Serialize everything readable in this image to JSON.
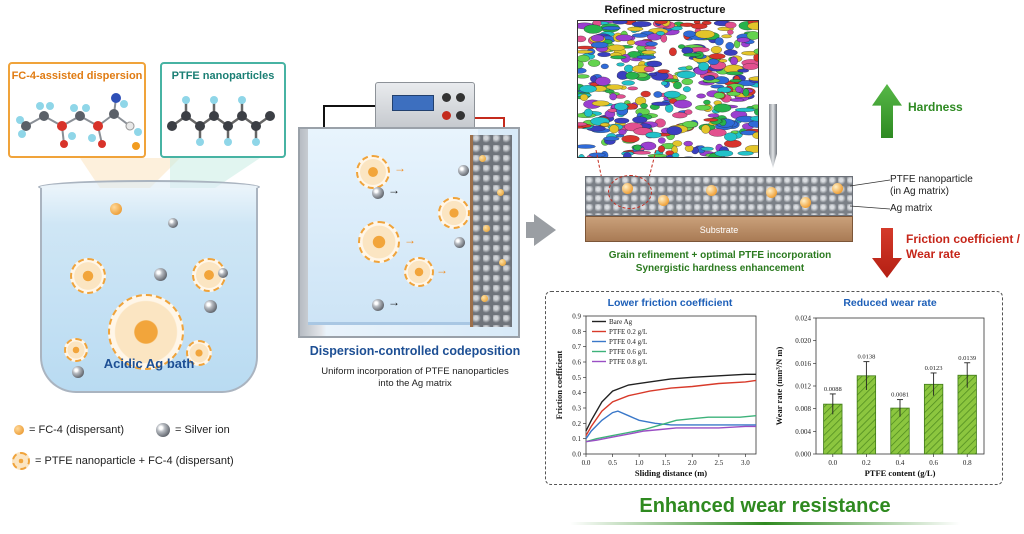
{
  "left": {
    "fc4_box_title": "FC-4-assisted dispersion",
    "ptfe_box_title": "PTFE nanoparticles",
    "bath_label": "Acidic Ag bath",
    "legend": {
      "fc4": "= FC-4 (dispersant)",
      "silver": "= Silver ion",
      "ptfe": "= PTFE nanoparticle + FC-4 (dispersant)"
    }
  },
  "middle": {
    "title": "Dispersion-controlled codeposition",
    "subtitle_line1": "Uniform incorporation of PTFE nanoparticles",
    "subtitle_line2": "into the Ag matrix"
  },
  "right": {
    "micro_title": "Refined microstructure",
    "ptfe_label_line1": "PTFE nanoparticle",
    "ptfe_label_line2": "(in Ag matrix)",
    "ag_label": "Ag matrix",
    "substrate": "Substrate",
    "caption_line1": "Grain refinement + optimal PTFE incorporation",
    "caption_line2": "Synergistic hardness enhancement",
    "hardness": "Hardness",
    "friction_line1": "Friction coefficient /",
    "friction_line2": "Wear rate",
    "bottom_title": "Enhanced wear resistance"
  },
  "colors": {
    "orange": "#f0a33a",
    "teal": "#47b3a3",
    "blue_title": "#1d4f94",
    "green": "#2e8a22",
    "red": "#c6261a"
  },
  "chart_data": [
    {
      "type": "line",
      "title": "Lower friction coefficient",
      "xlabel": "Sliding distance (m)",
      "ylabel": "Friction coefficient",
      "xlim": [
        0,
        3.2
      ],
      "ylim": [
        0,
        0.9
      ],
      "xticks": [
        "0.0",
        "0.5",
        "1.0",
        "1.5",
        "2.0",
        "2.5",
        "3.0"
      ],
      "yticks": [
        "0.0",
        "0.1",
        "0.2",
        "0.3",
        "0.4",
        "0.5",
        "0.6",
        "0.7",
        "0.8",
        "0.9"
      ],
      "legend_position": "top-left",
      "series": [
        {
          "name": "Bare Ag",
          "color": "#222222",
          "x": [
            0,
            0.1,
            0.3,
            0.5,
            0.8,
            1.2,
            1.6,
            2.0,
            2.5,
            3.0,
            3.2
          ],
          "y": [
            0.15,
            0.22,
            0.34,
            0.41,
            0.45,
            0.47,
            0.49,
            0.5,
            0.51,
            0.52,
            0.52
          ]
        },
        {
          "name": "PTFE 0.2 g/L",
          "color": "#d83a2a",
          "x": [
            0,
            0.1,
            0.3,
            0.5,
            0.8,
            1.2,
            1.6,
            2.0,
            2.5,
            3.0,
            3.2
          ],
          "y": [
            0.12,
            0.18,
            0.28,
            0.34,
            0.38,
            0.41,
            0.43,
            0.44,
            0.46,
            0.47,
            0.48
          ]
        },
        {
          "name": "PTFE 0.4 g/L",
          "color": "#3a78c9",
          "x": [
            0,
            0.1,
            0.3,
            0.5,
            0.6,
            0.8,
            1.0,
            1.3,
            1.6,
            2.0,
            2.5,
            3.0,
            3.2
          ],
          "y": [
            0.1,
            0.15,
            0.22,
            0.27,
            0.28,
            0.25,
            0.22,
            0.2,
            0.19,
            0.19,
            0.19,
            0.19,
            0.19
          ]
        },
        {
          "name": "PTFE 0.6 g/L",
          "color": "#3db27a",
          "x": [
            0,
            0.2,
            0.5,
            0.8,
            1.1,
            1.4,
            1.7,
            2.0,
            2.3,
            2.6,
            2.9,
            3.2
          ],
          "y": [
            0.08,
            0.1,
            0.12,
            0.14,
            0.16,
            0.19,
            0.22,
            0.23,
            0.24,
            0.24,
            0.24,
            0.25
          ]
        },
        {
          "name": "PTFE 0.8 g/L",
          "color": "#9a4fc4",
          "x": [
            0,
            0.2,
            0.5,
            0.8,
            1.1,
            1.4,
            1.7,
            2.0,
            2.5,
            3.0,
            3.2
          ],
          "y": [
            0.08,
            0.09,
            0.11,
            0.13,
            0.15,
            0.16,
            0.17,
            0.17,
            0.17,
            0.18,
            0.18
          ]
        }
      ]
    },
    {
      "type": "bar",
      "title": "Reduced wear rate",
      "xlabel": "PTFE content (g/L)",
      "ylabel": "Wear rate (mm³/N m)",
      "categories": [
        "0.0",
        "0.2",
        "0.4",
        "0.6",
        "0.8"
      ],
      "values": [
        0.0088,
        0.0138,
        0.0081,
        0.0123,
        0.0139
      ],
      "errors": [
        0.0018,
        0.0025,
        0.0015,
        0.002,
        0.0022
      ],
      "value_labels": [
        "0.0088",
        "0.0138",
        "0.0081",
        "0.0123",
        "0.0139"
      ],
      "yticks": [
        "0.000",
        "0.004",
        "0.008",
        "0.012",
        "0.016",
        "0.020",
        "0.024"
      ],
      "ylim": [
        0,
        0.024
      ],
      "bar_color": "#8cc63f"
    }
  ]
}
